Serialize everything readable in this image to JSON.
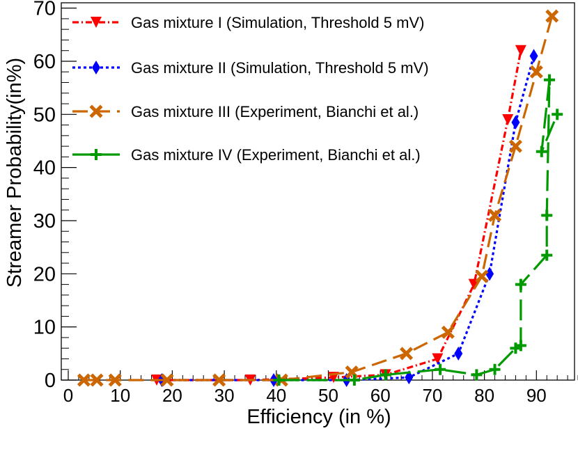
{
  "chart_data": {
    "type": "line",
    "xlabel": "Efficiency (in %)",
    "ylabel": "Streamer Probability(in%)",
    "xlim": [
      -1,
      99
    ],
    "ylim": [
      0,
      71
    ],
    "xticks": [
      0,
      10,
      20,
      30,
      40,
      50,
      60,
      70,
      80,
      90
    ],
    "yticks": [
      0,
      10,
      20,
      30,
      40,
      50,
      60,
      70
    ],
    "grid": false,
    "legend_placement": "top-left",
    "series": [
      {
        "name": "Gas mixture I (Simulation, Threshold 5 mV)",
        "color": "#ff0000",
        "line_style": "dash-dot",
        "marker": "triangle-down",
        "x": [
          17,
          35,
          51,
          61,
          71,
          78,
          84.5,
          87
        ],
        "y": [
          0,
          0,
          0.5,
          1,
          4,
          18,
          49,
          62
        ]
      },
      {
        "name": "Gas mixture II (Simulation, Threshold 5 mV)",
        "color": "#0000ff",
        "line_style": "dotted",
        "marker": "diamond",
        "x": [
          18,
          39.5,
          53.5,
          65.5,
          75,
          81,
          86,
          89.5
        ],
        "y": [
          0,
          0,
          0,
          0.5,
          5,
          20,
          48.5,
          61
        ]
      },
      {
        "name": "Gas mixture III (Experiment, Bianchi et al.)",
        "color": "#cc6600",
        "line_style": "dashed",
        "marker": "x",
        "x": [
          3,
          5.5,
          9,
          19,
          29,
          41,
          54.5,
          65,
          73,
          79.5,
          82,
          86,
          90,
          93
        ],
        "y": [
          0,
          0,
          0,
          0,
          0,
          0,
          1.5,
          5,
          9,
          19.5,
          31,
          44,
          58,
          68.5
        ]
      },
      {
        "name": "Gas mixture IV (Experiment, Bianchi et al.)",
        "color": "#009900",
        "line_style": "long-dash",
        "marker": "cross",
        "x": [
          40.5,
          55,
          61,
          71.5,
          78.5,
          82,
          86,
          87,
          87,
          92,
          92,
          92.5,
          91,
          94
        ],
        "y": [
          0,
          0,
          1,
          2,
          1,
          2,
          6,
          6.5,
          18,
          23.5,
          31,
          56.5,
          43,
          50
        ]
      }
    ]
  }
}
